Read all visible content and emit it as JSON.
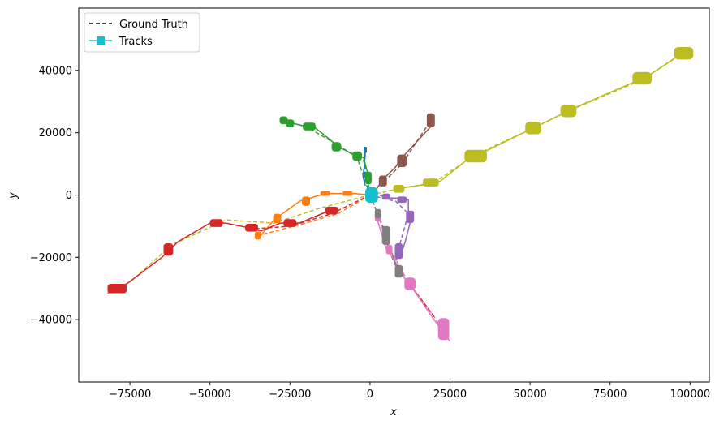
{
  "chart_data": {
    "type": "line",
    "title": "",
    "xlabel": "x",
    "ylabel": "y",
    "xlim": [
      -91000,
      106000
    ],
    "ylim": [
      -60000,
      60000
    ],
    "xticks": [
      -75000,
      -50000,
      -25000,
      0,
      25000,
      50000,
      75000,
      100000
    ],
    "yticks": [
      -40000,
      -20000,
      0,
      20000,
      40000
    ],
    "xtick_labels": [
      "−75000",
      "−50000",
      "−25000",
      "0",
      "25000",
      "50000",
      "75000",
      "100000"
    ],
    "ytick_labels": [
      "−40000",
      "−20000",
      "0",
      "20000",
      "40000"
    ],
    "grid": false,
    "legend": {
      "placement": "top-left",
      "entries": [
        {
          "label": "Ground Truth",
          "style": "dashed",
          "color": "#000000"
        },
        {
          "label": "Tracks",
          "style": "solid-square-marker",
          "color": "#17becf"
        }
      ]
    },
    "ground_truth": [
      {
        "color": "#1f77b4",
        "points": [
          [
            0,
            0
          ],
          [
            -1000,
            6000
          ],
          [
            -2000,
            11000
          ],
          [
            -1500,
            14000
          ]
        ]
      },
      {
        "color": "#ff7f0e",
        "points": [
          [
            0,
            0
          ],
          [
            -10000,
            -6000
          ],
          [
            -20000,
            -9000
          ],
          [
            -35000,
            -13000
          ]
        ]
      },
      {
        "color": "#bcbd22",
        "points": [
          [
            0,
            0
          ],
          [
            -15000,
            -4000
          ],
          [
            -30000,
            -9000
          ],
          [
            -45000,
            -8000
          ],
          [
            -62000,
            -16000
          ],
          [
            -75000,
            -28000
          ],
          [
            -82000,
            -31000
          ]
        ]
      },
      {
        "color": "#d62728",
        "points": [
          [
            0,
            0
          ],
          [
            -12000,
            -6000
          ],
          [
            -25000,
            -10000
          ],
          [
            -38000,
            -11000
          ]
        ]
      },
      {
        "color": "#2ca02c",
        "points": [
          [
            0,
            0
          ],
          [
            -2000,
            6000
          ],
          [
            -4000,
            12000
          ],
          [
            -10000,
            16000
          ],
          [
            -20000,
            22000
          ],
          [
            -28000,
            24000
          ]
        ]
      },
      {
        "color": "#8c564b",
        "points": [
          [
            0,
            0
          ],
          [
            5000,
            5000
          ],
          [
            10000,
            10000
          ],
          [
            19000,
            24000
          ]
        ]
      },
      {
        "color": "#e377c2",
        "points": [
          [
            0,
            0
          ],
          [
            3000,
            -8000
          ],
          [
            6000,
            -17000
          ],
          [
            12000,
            -28000
          ],
          [
            20000,
            -39000
          ],
          [
            25000,
            -47000
          ]
        ]
      },
      {
        "color": "#d62728",
        "points": [
          [
            12000,
            -28000
          ],
          [
            20000,
            -39000
          ]
        ]
      },
      {
        "color": "#7f7f7f",
        "points": [
          [
            0,
            0
          ],
          [
            4000,
            -10000
          ],
          [
            6000,
            -18000
          ],
          [
            9000,
            -25000
          ]
        ]
      },
      {
        "color": "#9467bd",
        "points": [
          [
            0,
            0
          ],
          [
            8000,
            -2000
          ],
          [
            12000,
            -6000
          ],
          [
            9000,
            -17000
          ],
          [
            8000,
            -21000
          ]
        ]
      },
      {
        "color": "#bcbd22",
        "points": [
          [
            0,
            0
          ],
          [
            9000,
            2000
          ],
          [
            20000,
            4000
          ],
          [
            33000,
            13000
          ],
          [
            50000,
            21000
          ],
          [
            62000,
            27000
          ],
          [
            85000,
            37000
          ],
          [
            100000,
            47000
          ]
        ]
      }
    ],
    "tracks": [
      {
        "color": "#1f77b4",
        "points": [
          [
            -1800,
            15500
          ],
          [
            -1500,
            13000
          ],
          [
            -1800,
            9000
          ],
          [
            -2200,
            6000
          ],
          [
            -1500,
            3000
          ]
        ]
      },
      {
        "color": "#ff7f0e",
        "points": [
          [
            -35000,
            -14000
          ],
          [
            -30000,
            -8000
          ],
          [
            -22000,
            -2000
          ],
          [
            -14000,
            500
          ],
          [
            -5000,
            500
          ],
          [
            0,
            0
          ]
        ]
      },
      {
        "color": "#d62728",
        "points": [
          [
            -82000,
            -31500
          ],
          [
            -76000,
            -28500
          ],
          [
            -65000,
            -20000
          ],
          [
            -60000,
            -15000
          ],
          [
            -50000,
            -9000
          ],
          [
            -45000,
            -9000
          ],
          [
            -38000,
            -10500
          ],
          [
            -34000,
            -11500
          ],
          [
            -28000,
            -9000
          ],
          [
            -22000,
            -9000
          ],
          [
            -15000,
            -6000
          ],
          [
            -10000,
            -4000
          ]
        ]
      },
      {
        "color": "#2ca02c",
        "points": [
          [
            -28000,
            24500
          ],
          [
            -24000,
            23000
          ],
          [
            -20000,
            22000
          ],
          [
            -17000,
            21500
          ],
          [
            -11000,
            16500
          ],
          [
            -9000,
            15000
          ],
          [
            -5000,
            13000
          ],
          [
            -2000,
            12000
          ],
          [
            -1000,
            8000
          ],
          [
            500,
            5000
          ]
        ]
      },
      {
        "color": "#8c564b",
        "points": [
          [
            18000,
            25000
          ],
          [
            19000,
            22000
          ],
          [
            10000,
            12000
          ],
          [
            8000,
            9000
          ],
          [
            5000,
            6000
          ],
          [
            2000,
            2000
          ]
        ]
      },
      {
        "color": "#e377c2",
        "points": [
          [
            2000,
            -7000
          ],
          [
            5000,
            -17000
          ],
          [
            7000,
            -20000
          ],
          [
            11000,
            -27000
          ],
          [
            14000,
            -31000
          ],
          [
            20000,
            -40000
          ],
          [
            25000,
            -47000
          ]
        ]
      },
      {
        "color": "#7f7f7f",
        "points": [
          [
            4000,
            -10000
          ],
          [
            5000,
            -14000
          ],
          [
            7000,
            -19000
          ],
          [
            9000,
            -25000
          ]
        ]
      },
      {
        "color": "#9467bd",
        "points": [
          [
            3000,
            0
          ],
          [
            5000,
            -1000
          ],
          [
            9000,
            -1000
          ],
          [
            12000,
            -1500
          ],
          [
            12000,
            -5000
          ],
          [
            13000,
            -7000
          ],
          [
            11000,
            -15000
          ],
          [
            10000,
            -18000
          ],
          [
            8000,
            -21000
          ]
        ]
      },
      {
        "color": "#bcbd22",
        "points": [
          [
            8000,
            2000
          ],
          [
            18000,
            3500
          ],
          [
            22000,
            4500
          ],
          [
            30000,
            11000
          ],
          [
            36000,
            14000
          ],
          [
            49000,
            20500
          ],
          [
            53000,
            22500
          ],
          [
            60000,
            26000
          ],
          [
            65000,
            28500
          ],
          [
            83000,
            36500
          ],
          [
            88000,
            39000
          ],
          [
            96000,
            44500
          ],
          [
            100000,
            47000
          ]
        ]
      },
      {
        "color": "#17becf",
        "points": [
          [
            -500,
            -1500
          ],
          [
            1500,
            1500
          ],
          [
            0,
            0
          ]
        ]
      }
    ],
    "track_segments": [
      {
        "color": "#1f77b4",
        "x": -1500,
        "y": 14500,
        "h": 2000,
        "w": 1000
      },
      {
        "color": "#1f77b4",
        "x": -1500,
        "y": 6500,
        "h": 2000,
        "w": 1000
      },
      {
        "color": "#ff7f0e",
        "x": -35000,
        "y": -13000,
        "h": 2500,
        "w": 2000
      },
      {
        "color": "#ff7f0e",
        "x": -29000,
        "y": -7500,
        "h": 3000,
        "w": 2500
      },
      {
        "color": "#ff7f0e",
        "x": -20000,
        "y": -2000,
        "h": 3000,
        "w": 2500
      },
      {
        "color": "#ff7f0e",
        "x": -14000,
        "y": 500,
        "h": 1500,
        "w": 3000
      },
      {
        "color": "#ff7f0e",
        "x": -7000,
        "y": 500,
        "h": 1500,
        "w": 3000
      },
      {
        "color": "#d62728",
        "x": -79000,
        "y": -30000,
        "h": 3000,
        "w": 6000
      },
      {
        "color": "#d62728",
        "x": -63000,
        "y": -17500,
        "h": 4000,
        "w": 3000
      },
      {
        "color": "#d62728",
        "x": -48000,
        "y": -9000,
        "h": 2500,
        "w": 4000
      },
      {
        "color": "#d62728",
        "x": -37000,
        "y": -10500,
        "h": 2500,
        "w": 4000
      },
      {
        "color": "#d62728",
        "x": -25000,
        "y": -9000,
        "h": 2500,
        "w": 4000
      },
      {
        "color": "#d62728",
        "x": -12000,
        "y": -5000,
        "h": 2500,
        "w": 4000
      },
      {
        "color": "#2ca02c",
        "x": -27000,
        "y": 24000,
        "h": 2500,
        "w": 2500
      },
      {
        "color": "#2ca02c",
        "x": -25000,
        "y": 23000,
        "h": 2500,
        "w": 2500
      },
      {
        "color": "#2ca02c",
        "x": -19000,
        "y": 22000,
        "h": 2500,
        "w": 4000
      },
      {
        "color": "#2ca02c",
        "x": -10500,
        "y": 15500,
        "h": 3000,
        "w": 3000
      },
      {
        "color": "#2ca02c",
        "x": -4000,
        "y": 12500,
        "h": 3000,
        "w": 3000
      },
      {
        "color": "#2ca02c",
        "x": -500,
        "y": 5500,
        "h": 4000,
        "w": 2000
      },
      {
        "color": "#8c564b",
        "x": 19000,
        "y": 24000,
        "h": 4500,
        "w": 2500
      },
      {
        "color": "#8c564b",
        "x": 10000,
        "y": 11000,
        "h": 4000,
        "w": 3000
      },
      {
        "color": "#8c564b",
        "x": 4000,
        "y": 4500,
        "h": 3500,
        "w": 2500
      },
      {
        "color": "#e377c2",
        "x": 2500,
        "y": -7000,
        "h": 3000,
        "w": 2000
      },
      {
        "color": "#e377c2",
        "x": 6000,
        "y": -17500,
        "h": 3000,
        "w": 2000
      },
      {
        "color": "#e377c2",
        "x": 12500,
        "y": -28500,
        "h": 4000,
        "w": 3500
      },
      {
        "color": "#e377c2",
        "x": 23000,
        "y": -43000,
        "h": 7000,
        "w": 3500
      },
      {
        "color": "#7f7f7f",
        "x": 2500,
        "y": -6000,
        "h": 3000,
        "w": 2000
      },
      {
        "color": "#7f7f7f",
        "x": 5000,
        "y": -13000,
        "h": 6000,
        "w": 2500
      },
      {
        "color": "#7f7f7f",
        "x": 9000,
        "y": -24500,
        "h": 4000,
        "w": 2500
      },
      {
        "color": "#9467bd",
        "x": 5000,
        "y": -500,
        "h": 2000,
        "w": 2500
      },
      {
        "color": "#9467bd",
        "x": 10000,
        "y": -1500,
        "h": 2000,
        "w": 3000
      },
      {
        "color": "#9467bd",
        "x": 12500,
        "y": -7000,
        "h": 4000,
        "w": 2500
      },
      {
        "color": "#9467bd",
        "x": 9000,
        "y": -18000,
        "h": 5000,
        "w": 2500
      },
      {
        "color": "#bcbd22",
        "x": 9000,
        "y": 2000,
        "h": 2500,
        "w": 3500
      },
      {
        "color": "#bcbd22",
        "x": 19000,
        "y": 4000,
        "h": 2500,
        "w": 5000
      },
      {
        "color": "#bcbd22",
        "x": 33000,
        "y": 12500,
        "h": 4000,
        "w": 7000
      },
      {
        "color": "#bcbd22",
        "x": 51000,
        "y": 21500,
        "h": 4000,
        "w": 5000
      },
      {
        "color": "#bcbd22",
        "x": 62000,
        "y": 27000,
        "h": 4000,
        "w": 5000
      },
      {
        "color": "#bcbd22",
        "x": 85000,
        "y": 37500,
        "h": 4000,
        "w": 6000
      },
      {
        "color": "#bcbd22",
        "x": 98000,
        "y": 45500,
        "h": 4000,
        "w": 6000
      },
      {
        "color": "#17becf",
        "x": 500,
        "y": 0,
        "h": 5000,
        "w": 4000
      }
    ]
  }
}
